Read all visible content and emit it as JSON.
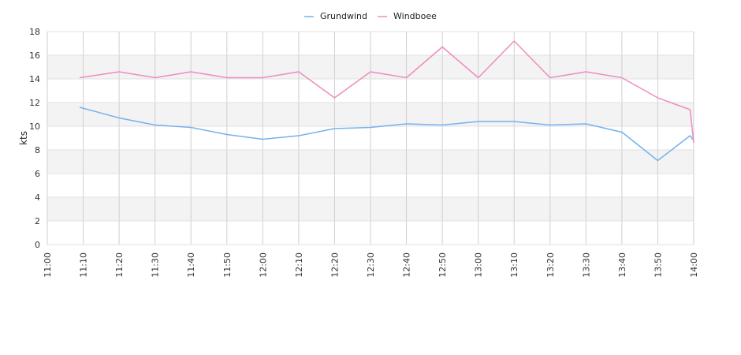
{
  "chart_data": {
    "type": "line",
    "ylabel": "kts",
    "ylim": [
      0,
      18
    ],
    "yticks": [
      0,
      2,
      4,
      6,
      8,
      10,
      12,
      14,
      16,
      18
    ],
    "xticks": [
      "11:00",
      "11:10",
      "11:20",
      "11:30",
      "11:40",
      "11:50",
      "12:00",
      "12:10",
      "12:20",
      "12:30",
      "12:40",
      "12:50",
      "13:00",
      "13:10",
      "13:20",
      "13:30",
      "13:40",
      "13:50",
      "14:00"
    ],
    "legend_position": "top-center",
    "grid": true,
    "series": [
      {
        "name": "Grundwind",
        "color": "#74b2ee",
        "points": [
          [
            "11:09",
            11.6
          ],
          [
            "11:20",
            10.7
          ],
          [
            "11:30",
            10.1
          ],
          [
            "11:40",
            9.9
          ],
          [
            "11:50",
            9.3
          ],
          [
            "12:00",
            8.9
          ],
          [
            "12:10",
            9.2
          ],
          [
            "12:20",
            9.8
          ],
          [
            "12:30",
            9.9
          ],
          [
            "12:40",
            10.2
          ],
          [
            "12:50",
            10.1
          ],
          [
            "13:00",
            10.4
          ],
          [
            "13:10",
            10.4
          ],
          [
            "13:20",
            10.1
          ],
          [
            "13:30",
            10.2
          ],
          [
            "13:40",
            9.5
          ],
          [
            "13:50",
            7.1
          ],
          [
            "13:59",
            9.2
          ],
          [
            "14:00",
            8.8
          ]
        ]
      },
      {
        "name": "Windboee",
        "color": "#ee8cbe",
        "points": [
          [
            "11:09",
            14.1
          ],
          [
            "11:20",
            14.6
          ],
          [
            "11:30",
            14.1
          ],
          [
            "11:40",
            14.6
          ],
          [
            "11:50",
            14.1
          ],
          [
            "12:00",
            14.1
          ],
          [
            "12:10",
            14.6
          ],
          [
            "12:20",
            12.4
          ],
          [
            "12:30",
            14.6
          ],
          [
            "12:40",
            14.1
          ],
          [
            "12:50",
            16.7
          ],
          [
            "13:00",
            14.1
          ],
          [
            "13:10",
            17.2
          ],
          [
            "13:20",
            14.1
          ],
          [
            "13:30",
            14.6
          ],
          [
            "13:40",
            14.1
          ],
          [
            "13:50",
            12.4
          ],
          [
            "13:59",
            11.4
          ],
          [
            "14:00",
            8.6
          ]
        ]
      }
    ]
  }
}
